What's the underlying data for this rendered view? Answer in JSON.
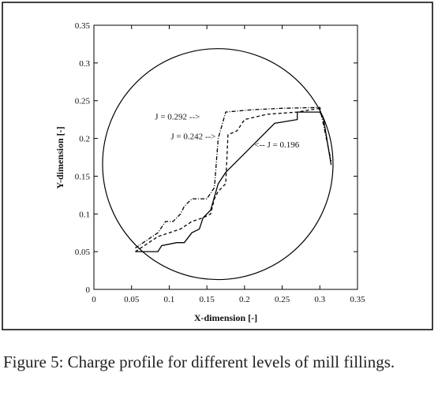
{
  "chart_data": {
    "type": "line",
    "xlabel": "X-dimension [-]",
    "ylabel": "Y-dimension [-]",
    "xlim": [
      0,
      0.35
    ],
    "ylim": [
      0,
      0.35
    ],
    "xticks": [
      0,
      0.05,
      0.1,
      0.15,
      0.2,
      0.25,
      0.3,
      0.35
    ],
    "yticks": [
      0,
      0.05,
      0.1,
      0.15,
      0.2,
      0.25,
      0.3,
      0.35
    ],
    "grid": false,
    "circle": {
      "cx": 0.1645,
      "cy": 0.166,
      "r": 0.153,
      "color": "#000000"
    },
    "series": [
      {
        "color": "#000000",
        "linestyle": "solid",
        "x": [
          0.055,
          0.085,
          0.09,
          0.11,
          0.12,
          0.13,
          0.14,
          0.145,
          0.155,
          0.165,
          0.175,
          0.2,
          0.22,
          0.24,
          0.27,
          0.27,
          0.3,
          0.305,
          0.315
        ],
        "values": [
          0.05,
          0.05,
          0.058,
          0.062,
          0.062,
          0.075,
          0.08,
          0.095,
          0.105,
          0.14,
          0.155,
          0.18,
          0.2,
          0.22,
          0.225,
          0.235,
          0.235,
          0.225,
          0.165
        ]
      },
      {
        "color": "#000000",
        "linestyle": "dashed",
        "x": [
          0.055,
          0.085,
          0.1,
          0.115,
          0.13,
          0.145,
          0.155,
          0.16,
          0.165,
          0.17,
          0.175,
          0.178,
          0.19,
          0.2,
          0.23,
          0.27,
          0.3
        ],
        "values": [
          0.05,
          0.07,
          0.075,
          0.08,
          0.09,
          0.095,
          0.1,
          0.12,
          0.13,
          0.135,
          0.14,
          0.205,
          0.21,
          0.225,
          0.232,
          0.235,
          0.24
        ]
      },
      {
        "color": "#000000",
        "linestyle": "dashdot",
        "x": [
          0.055,
          0.07,
          0.085,
          0.095,
          0.105,
          0.115,
          0.12,
          0.13,
          0.15,
          0.16,
          0.165,
          0.175,
          0.21,
          0.25,
          0.3,
          0.315
        ],
        "values": [
          0.055,
          0.065,
          0.075,
          0.09,
          0.09,
          0.1,
          0.11,
          0.12,
          0.12,
          0.135,
          0.2,
          0.235,
          0.238,
          0.24,
          0.241,
          0.17
        ]
      }
    ],
    "annotations": [
      {
        "text": "J = 0.292 -->",
        "x": 0.081,
        "y": 0.225
      },
      {
        "text": "J = 0.242 -->",
        "x": 0.102,
        "y": 0.199
      },
      {
        "text": "<-- J = 0.196",
        "x": 0.213,
        "y": 0.188
      }
    ]
  },
  "caption": "Figure 5: Charge profile for different levels of mill fillings."
}
